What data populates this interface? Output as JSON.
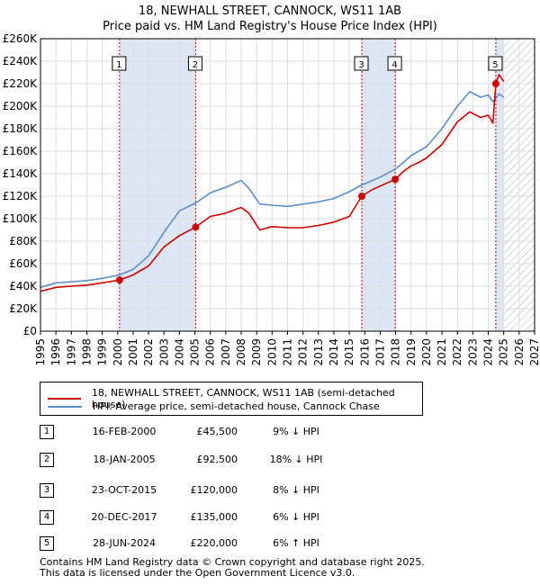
{
  "chart_data": {
    "type": "line",
    "title": "18, NEWHALL STREET, CANNOCK, WS11 1AB",
    "subtitle": "Price paid vs. HM Land Registry's House Price Index (HPI)",
    "xlim": [
      1995,
      2027
    ],
    "ylim": [
      0,
      260000
    ],
    "x_ticks": [
      "1995",
      "1996",
      "1997",
      "1998",
      "1999",
      "2000",
      "2001",
      "2002",
      "2003",
      "2004",
      "2005",
      "2006",
      "2007",
      "2008",
      "2009",
      "2010",
      "2011",
      "2012",
      "2013",
      "2014",
      "2015",
      "2016",
      "2017",
      "2018",
      "2019",
      "2020",
      "2021",
      "2022",
      "2023",
      "2024",
      "2025",
      "2026",
      "2027"
    ],
    "y_ticks": [
      {
        "value": 0,
        "label": "£0"
      },
      {
        "value": 20000,
        "label": "£20K"
      },
      {
        "value": 40000,
        "label": "£40K"
      },
      {
        "value": 60000,
        "label": "£60K"
      },
      {
        "value": 80000,
        "label": "£80K"
      },
      {
        "value": 100000,
        "label": "£100K"
      },
      {
        "value": 120000,
        "label": "£120K"
      },
      {
        "value": 140000,
        "label": "£140K"
      },
      {
        "value": 160000,
        "label": "£160K"
      },
      {
        "value": 180000,
        "label": "£180K"
      },
      {
        "value": 200000,
        "label": "£200K"
      },
      {
        "value": 220000,
        "label": "£220K"
      },
      {
        "value": 240000,
        "label": "£240K"
      },
      {
        "value": 260000,
        "label": "£260K"
      }
    ],
    "grid": true,
    "shaded_periods": [
      [
        2000.12,
        2005.05
      ],
      [
        2015.81,
        2017.97
      ],
      [
        2024.49,
        2025.0
      ]
    ],
    "forecast_hatch": [
      2025.0,
      2027
    ],
    "series": [
      {
        "name": "18, NEWHALL STREET, CANNOCK, WS11 1AB (semi-detached house)",
        "color": "#cc0000",
        "x": [
          1995.0,
          1996.0,
          1997.0,
          1998.0,
          1999.0,
          2000.12,
          2001.0,
          2002.0,
          2003.0,
          2004.0,
          2005.05,
          2006.0,
          2007.0,
          2008.0,
          2008.5,
          2009.2,
          2010.0,
          2011.0,
          2012.0,
          2013.0,
          2014.0,
          2015.0,
          2015.81,
          2016.5,
          2017.0,
          2017.97,
          2018.5,
          2019.0,
          2019.5,
          2020.0,
          2021.0,
          2022.0,
          2022.8,
          2023.5,
          2024.0,
          2024.3,
          2024.49,
          2024.7,
          2025.0
        ],
        "y": [
          35500,
          39000,
          40000,
          41000,
          43000,
          45500,
          50000,
          58000,
          75000,
          85000,
          92500,
          102000,
          105000,
          110000,
          105000,
          90000,
          93000,
          92000,
          92000,
          94000,
          97000,
          102000,
          120000,
          126000,
          129000,
          135000,
          142000,
          147000,
          150000,
          154000,
          166000,
          186000,
          195000,
          190000,
          192000,
          185000,
          220000,
          228000,
          222000
        ]
      },
      {
        "name": "HPI: Average price, semi-detached house, Cannock Chase",
        "color": "#5b8fcc",
        "x": [
          1995.0,
          1996.0,
          1997.0,
          1998.0,
          1999.0,
          2000.12,
          2001.0,
          2002.0,
          2003.0,
          2004.0,
          2005.05,
          2006.0,
          2007.0,
          2008.0,
          2008.5,
          2009.2,
          2010.0,
          2011.0,
          2012.0,
          2013.0,
          2014.0,
          2015.0,
          2015.81,
          2016.5,
          2017.0,
          2017.97,
          2018.5,
          2019.0,
          2019.5,
          2020.0,
          2021.0,
          2022.0,
          2022.8,
          2023.5,
          2024.0,
          2024.3,
          2024.49,
          2024.7,
          2025.0
        ],
        "y": [
          39000,
          43000,
          44000,
          45000,
          47000,
          50000,
          55000,
          67000,
          88000,
          107000,
          114000,
          123000,
          128000,
          134000,
          127000,
          113000,
          112000,
          111000,
          113000,
          115000,
          118000,
          124000,
          130000,
          134000,
          137000,
          144000,
          150000,
          156000,
          160000,
          164000,
          180000,
          200000,
          213000,
          208000,
          210000,
          204000,
          207000,
          211000,
          208000
        ]
      }
    ],
    "sales": [
      {
        "label": "1",
        "date": "16-FEB-2000",
        "x": 2000.12,
        "price": 45500,
        "price_label": "£45,500",
        "hpi": "9% ↓ HPI"
      },
      {
        "label": "2",
        "date": "18-JAN-2005",
        "x": 2005.05,
        "price": 92500,
        "price_label": "£92,500",
        "hpi": "18% ↓ HPI"
      },
      {
        "label": "3",
        "date": "23-OCT-2015",
        "x": 2015.81,
        "price": 120000,
        "price_label": "£120,000",
        "hpi": "8% ↓ HPI"
      },
      {
        "label": "4",
        "date": "20-DEC-2017",
        "x": 2017.97,
        "price": 135000,
        "price_label": "£135,000",
        "hpi": "6% ↓ HPI"
      },
      {
        "label": "5",
        "date": "28-JUN-2024",
        "x": 2024.49,
        "price": 220000,
        "price_label": "£220,000",
        "hpi": "6% ↑ HPI"
      }
    ]
  },
  "legend": {
    "property": "18, NEWHALL STREET, CANNOCK, WS11 1AB (semi-detached house)",
    "hpi": "HPI: Average price, semi-detached house, Cannock Chase"
  },
  "footer": {
    "line1": "Contains HM Land Registry data © Crown copyright and database right 2025.",
    "line2": "This data is licensed under the Open Government Licence v3.0."
  },
  "colors": {
    "property": "#cc0000",
    "hpi": "#5b8fcc",
    "shade": "#dde6f5",
    "grid": "#dddddd",
    "marker_line": "#cc0000"
  }
}
